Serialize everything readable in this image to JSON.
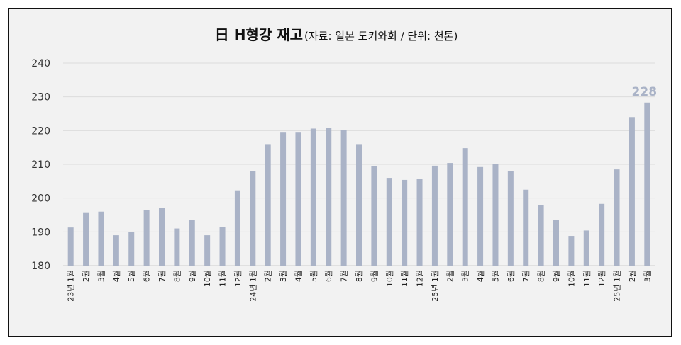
{
  "chart_data": {
    "type": "bar",
    "title": "日 H형강 재고",
    "subtitle": "(자료: 일본 도키와회 / 단위: 천톤)",
    "xlabel": "",
    "ylabel": "",
    "ylim": [
      180,
      240
    ],
    "yticks": [
      180,
      190,
      200,
      210,
      220,
      230,
      240
    ],
    "grid": true,
    "bar_color": "#aab3c7",
    "label_color": "#aab3c7",
    "categories": [
      "23년 1월",
      "2월",
      "3월",
      "4월",
      "5월",
      "6월",
      "7월",
      "8월",
      "9월",
      "10월",
      "11월",
      "12월",
      "24년 1월",
      "2월",
      "3월",
      "4월",
      "5월",
      "6월",
      "7월",
      "8월",
      "9월",
      "10월",
      "11월",
      "12월",
      "25년 1월",
      "2월",
      "3월",
      "4월",
      "5월",
      "6월",
      "7월",
      "8월",
      "9월",
      "10월",
      "11월",
      "12월",
      "25년 1월",
      "2월",
      "3월"
    ],
    "values": [
      191.3,
      195.8,
      196,
      189,
      190,
      196.5,
      197,
      191,
      193.5,
      189,
      191.4,
      202.3,
      208,
      216,
      219.4,
      219.4,
      220.6,
      220.8,
      220.2,
      216,
      209.4,
      206,
      205.4,
      205.6,
      209.6,
      210.4,
      214.8,
      209.2,
      210,
      208,
      202.5,
      198,
      193.5,
      188.8,
      190.4,
      198.3,
      208.5,
      224,
      228.3
    ],
    "data_labels": [
      {
        "index": 38,
        "text": "228"
      }
    ]
  }
}
